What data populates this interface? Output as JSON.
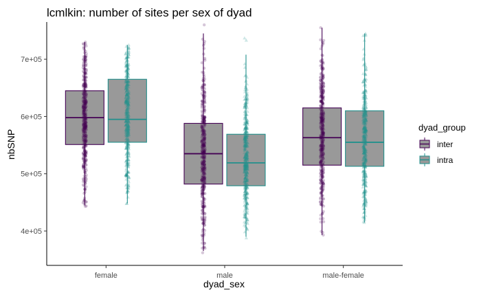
{
  "chart_data": {
    "type": "boxplot",
    "title": "lcmlkin: number of sites per sex of dyad",
    "xlabel": "dyad_sex",
    "ylabel": "nbSNP",
    "categories": [
      "female",
      "male",
      "male-female"
    ],
    "ylim": [
      340000,
      765000
    ],
    "yticks": [
      400000,
      500000,
      600000,
      700000
    ],
    "ytick_labels": [
      "4e+05",
      "5e+05",
      "6e+05",
      "7e+05"
    ],
    "grid": false,
    "legend": {
      "title": "dyad_group",
      "placement": "right"
    },
    "box_fill": "#999999",
    "series": [
      {
        "name": "inter",
        "color": "#440154",
        "marker": "circle",
        "boxes": [
          {
            "category": "female",
            "q1": 551000,
            "median": 598000,
            "q3": 645000,
            "whisker_low": 445000,
            "whisker_high": 730000,
            "point_min": 443000,
            "point_max": 730000
          },
          {
            "category": "male",
            "q1": 482000,
            "median": 535000,
            "q3": 588000,
            "whisker_low": 365000,
            "whisker_high": 745000,
            "point_min": 362000,
            "point_max": 760000
          },
          {
            "category": "male-female",
            "q1": 515000,
            "median": 563000,
            "q3": 615000,
            "whisker_low": 393000,
            "whisker_high": 755000,
            "point_min": 393000,
            "point_max": 755000
          }
        ]
      },
      {
        "name": "intra",
        "color": "#21908C",
        "marker": "triangle",
        "boxes": [
          {
            "category": "female",
            "q1": 555000,
            "median": 595000,
            "q3": 665000,
            "whisker_low": 448000,
            "whisker_high": 725000,
            "point_min": 448000,
            "point_max": 725000
          },
          {
            "category": "male",
            "q1": 479000,
            "median": 519000,
            "q3": 569000,
            "whisker_low": 390000,
            "whisker_high": 708000,
            "point_min": 388000,
            "point_max": 737000
          },
          {
            "category": "male-female",
            "q1": 513000,
            "median": 555000,
            "q3": 610000,
            "whisker_low": 415000,
            "whisker_high": 745000,
            "point_min": 415000,
            "point_max": 745000
          }
        ]
      }
    ]
  }
}
